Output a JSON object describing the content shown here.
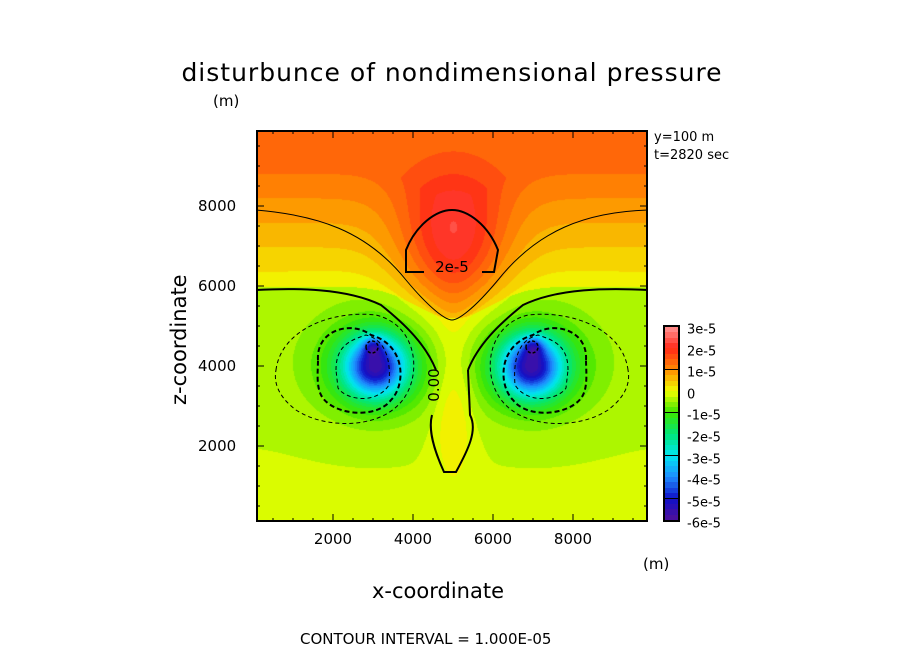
{
  "chart_data": {
    "type": "heatmap",
    "subtype": "filled-contour",
    "title": "disturbunce of nondimensional pressure",
    "title_units": "(m)",
    "xlabel": "x-coordinate",
    "ylabel": "z-coordinate",
    "x_units": "(m)",
    "xlim": [
      75,
      9875
    ],
    "ylim": [
      100,
      9900
    ],
    "x_ticks": [
      "2000",
      "4000",
      "6000",
      "8000"
    ],
    "x_tick_values": [
      2000,
      4000,
      6000,
      8000
    ],
    "y_ticks": [
      "2000",
      "4000",
      "6000",
      "8000"
    ],
    "y_tick_values": [
      2000,
      4000,
      6000,
      8000
    ],
    "annotations": [
      "y=100 m",
      "t=2820 sec"
    ],
    "contour_labels": [
      "2e-5",
      "0.00"
    ],
    "contour_interval_text": "CONTOUR INTERVAL = 1.000E-05",
    "colorbar": {
      "labels": [
        "3e-5",
        "2e-5",
        "1e-5",
        "0",
        "-1e-5",
        "-2e-5",
        "-3e-5",
        "-4e-5",
        "-5e-5",
        "-6e-5"
      ],
      "min": -6e-05,
      "max": 3e-05,
      "colors": {
        "-6": "#50109a",
        "-5": "#1010c8",
        "-4": "#1e8cff",
        "-3": "#00e6f0",
        "-2": "#00e678",
        "-1": "#3ce600",
        "0": "#f0ff00",
        "1": "#ff8c00",
        "2": "#ff2818",
        "3": "#ff9696"
      }
    },
    "features": [
      {
        "kind": "maximum",
        "x": 5000,
        "z": 6800,
        "value": 2.3e-05
      },
      {
        "kind": "minimum",
        "x": 3000,
        "z": 4300,
        "value": -5e-05
      },
      {
        "kind": "minimum",
        "x": 7000,
        "z": 4300,
        "value": -5e-05
      }
    ]
  }
}
